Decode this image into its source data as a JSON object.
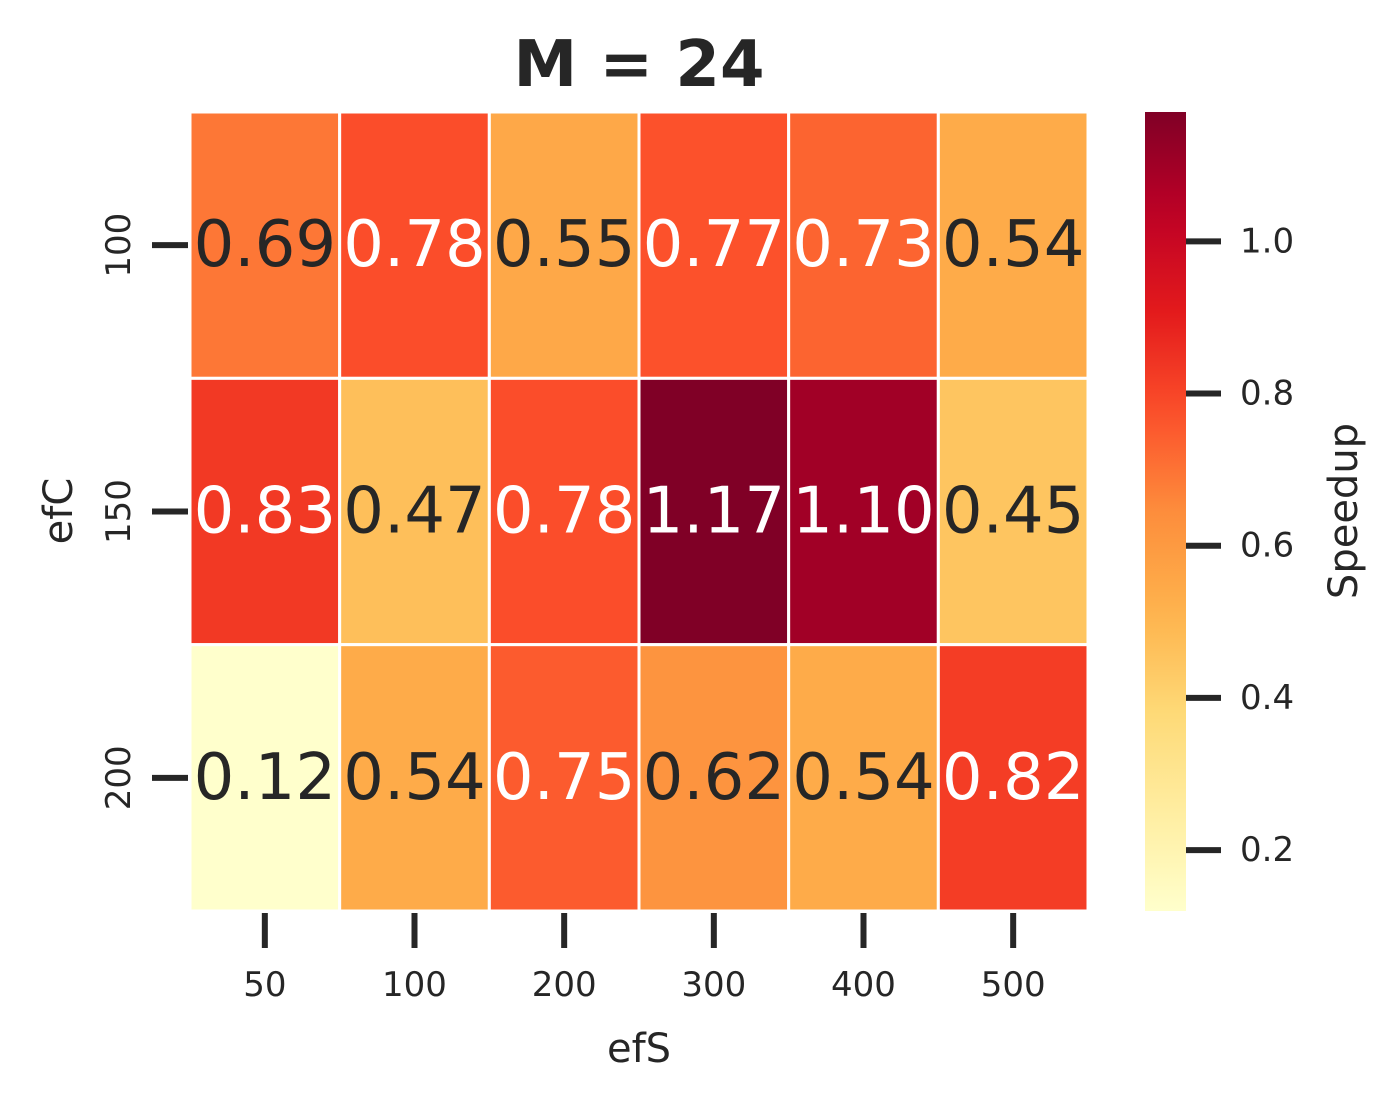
{
  "chart_data": {
    "type": "heatmap",
    "title": "M = 24",
    "xlabel": "efS",
    "ylabel": "efC",
    "x_categories": [
      "50",
      "100",
      "200",
      "300",
      "400",
      "500"
    ],
    "y_categories": [
      "100",
      "150",
      "200"
    ],
    "values": [
      [
        0.69,
        0.78,
        0.55,
        0.77,
        0.73,
        0.54
      ],
      [
        0.83,
        0.47,
        0.78,
        1.17,
        1.1,
        0.45
      ],
      [
        0.12,
        0.54,
        0.75,
        0.62,
        0.54,
        0.82
      ]
    ],
    "value_labels": [
      [
        "0.69",
        "0.78",
        "0.55",
        "0.77",
        "0.73",
        "0.54"
      ],
      [
        "0.83",
        "0.47",
        "0.78",
        "1.17",
        "1.10",
        "0.45"
      ],
      [
        "0.12",
        "0.54",
        "0.75",
        "0.62",
        "0.54",
        "0.82"
      ]
    ],
    "colorbar": {
      "label": "Speedup",
      "colormap": "YlOrRd",
      "vmin": 0.12,
      "vmax": 1.17,
      "ticks": [
        0.2,
        0.4,
        0.6,
        0.8,
        1.0
      ],
      "tick_labels": [
        "0.2",
        "0.4",
        "0.6",
        "0.8",
        "1.0"
      ]
    },
    "cell_border_color": "#ffffff",
    "text_color_dark": "#262626",
    "text_color_light": "#ffffff"
  }
}
